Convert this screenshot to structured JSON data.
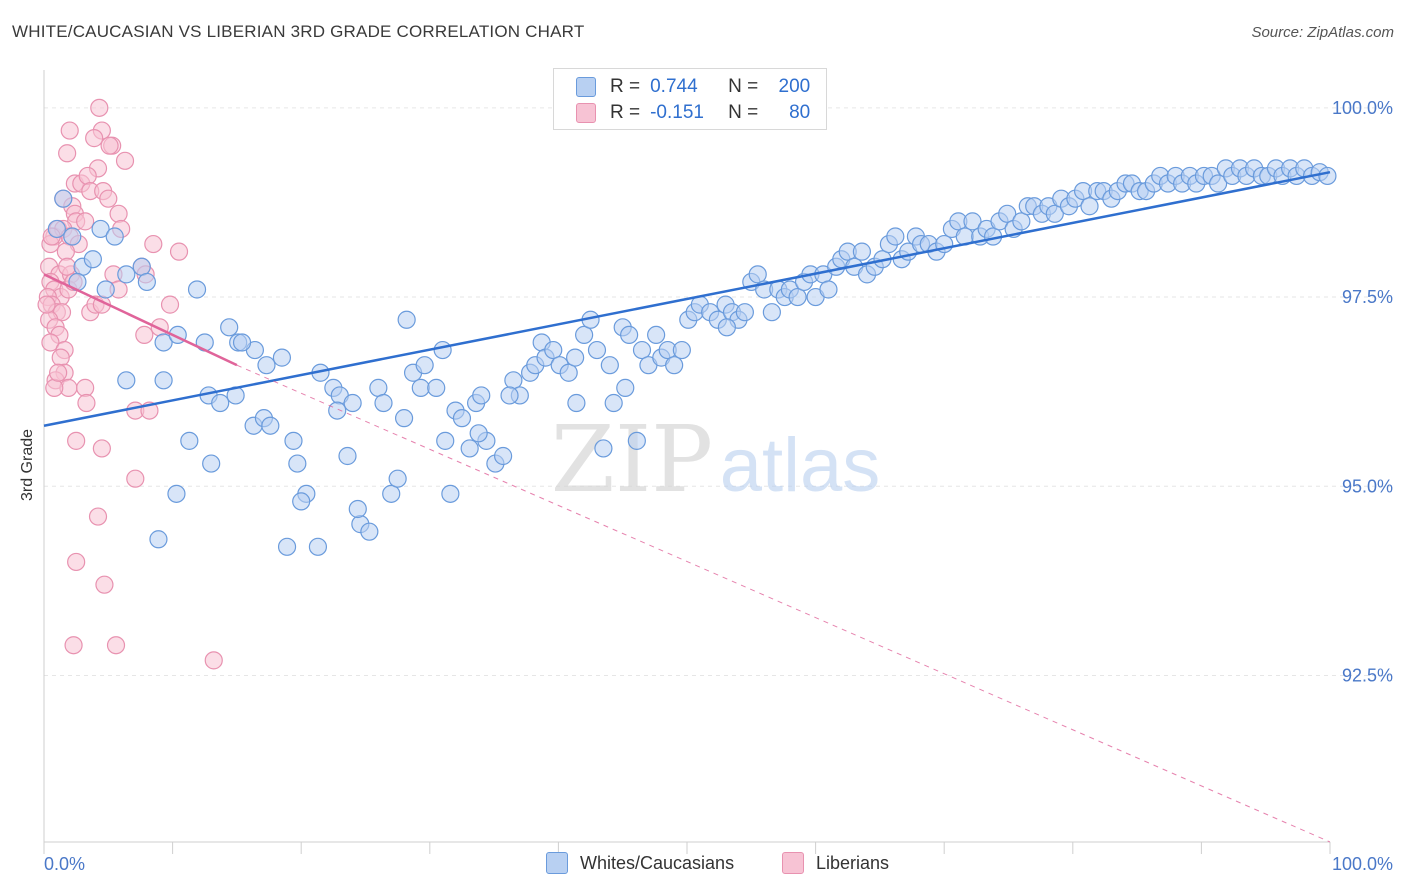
{
  "title": "WHITE/CAUCASIAN VS LIBERIAN 3RD GRADE CORRELATION CHART",
  "source": "Source: ZipAtlas.com",
  "watermark": {
    "zip": "ZIP",
    "atlas": "atlas"
  },
  "legend": {
    "rows": [
      {
        "r_label": "R =",
        "r_value": "0.744",
        "n_label": "N =",
        "n_value": "200"
      },
      {
        "r_label": "R =",
        "r_value": "-0.151",
        "n_label": "N =",
        "n_value": "80"
      }
    ]
  },
  "bottom_legend": {
    "series1": "Whites/Caucasians",
    "series2": "Liberians"
  },
  "colors": {
    "blue_fill": "#b8d0f2",
    "blue_stroke": "#6a9bdc",
    "blue_line": "#2f6fcf",
    "pink_fill": "#f7c3d4",
    "pink_stroke": "#e892b0",
    "pink_line": "#e0649a",
    "tick_label": "#4a78c8",
    "grid": "#e6e6e6"
  },
  "chart_data": {
    "type": "scatter",
    "title": "WHITE/CAUCASIAN VS LIBERIAN 3RD GRADE CORRELATION CHART",
    "xlabel": "",
    "ylabel": "3rd Grade",
    "xlim": [
      0,
      100
    ],
    "ylim": [
      90.3,
      100.5
    ],
    "x_tick_labels": [
      "0.0%",
      "100.0%"
    ],
    "y_ticks": [
      92.5,
      95.0,
      97.5,
      100.0
    ],
    "y_tick_labels": [
      "92.5%",
      "95.0%",
      "97.5%",
      "100.0%"
    ],
    "series": [
      {
        "name": "Whites/Caucasians",
        "R": 0.744,
        "N": 200,
        "trend": {
          "x": [
            0,
            100
          ],
          "y": [
            95.8,
            99.15
          ]
        },
        "points": [
          [
            1.0,
            98.4
          ],
          [
            1.5,
            98.8
          ],
          [
            2.2,
            98.3
          ],
          [
            3.0,
            97.9
          ],
          [
            3.8,
            98.0
          ],
          [
            4.4,
            98.4
          ],
          [
            5.5,
            98.3
          ],
          [
            2.6,
            97.7
          ],
          [
            4.8,
            97.6
          ],
          [
            6.4,
            97.8
          ],
          [
            7.6,
            97.9
          ],
          [
            8.0,
            97.7
          ],
          [
            11.9,
            97.6
          ],
          [
            9.3,
            96.9
          ],
          [
            10.4,
            97.0
          ],
          [
            12.5,
            96.9
          ],
          [
            14.4,
            97.1
          ],
          [
            15.1,
            96.9
          ],
          [
            16.4,
            96.8
          ],
          [
            17.3,
            96.6
          ],
          [
            18.5,
            96.7
          ],
          [
            6.4,
            96.4
          ],
          [
            9.3,
            96.4
          ],
          [
            12.8,
            96.2
          ],
          [
            13.7,
            96.1
          ],
          [
            14.9,
            96.2
          ],
          [
            16.3,
            95.8
          ],
          [
            17.1,
            95.9
          ],
          [
            17.6,
            95.8
          ],
          [
            11.3,
            95.6
          ],
          [
            13.0,
            95.3
          ],
          [
            10.3,
            94.9
          ],
          [
            8.9,
            94.3
          ],
          [
            19.4,
            95.6
          ],
          [
            19.7,
            95.3
          ],
          [
            20.4,
            94.9
          ],
          [
            20.0,
            94.8
          ],
          [
            21.5,
            96.5
          ],
          [
            22.5,
            96.3
          ],
          [
            23.0,
            96.2
          ],
          [
            23.6,
            95.4
          ],
          [
            24.0,
            96.1
          ],
          [
            24.6,
            94.5
          ],
          [
            24.4,
            94.7
          ],
          [
            25.3,
            94.4
          ],
          [
            26.0,
            96.3
          ],
          [
            26.4,
            96.1
          ],
          [
            27.0,
            94.9
          ],
          [
            27.5,
            95.1
          ],
          [
            28.0,
            95.9
          ],
          [
            28.7,
            96.5
          ],
          [
            29.3,
            96.3
          ],
          [
            29.6,
            96.6
          ],
          [
            30.5,
            96.3
          ],
          [
            31.0,
            96.8
          ],
          [
            31.2,
            95.6
          ],
          [
            31.6,
            94.9
          ],
          [
            32.0,
            96.0
          ],
          [
            32.5,
            95.9
          ],
          [
            33.1,
            95.5
          ],
          [
            33.6,
            96.1
          ],
          [
            34.0,
            96.2
          ],
          [
            34.4,
            95.6
          ],
          [
            35.1,
            95.3
          ],
          [
            35.7,
            95.4
          ],
          [
            36.5,
            96.4
          ],
          [
            37.0,
            96.2
          ],
          [
            37.8,
            96.5
          ],
          [
            38.2,
            96.6
          ],
          [
            38.7,
            96.9
          ],
          [
            39.0,
            96.7
          ],
          [
            39.6,
            96.8
          ],
          [
            40.1,
            96.6
          ],
          [
            40.8,
            96.5
          ],
          [
            41.3,
            96.7
          ],
          [
            42.0,
            97.0
          ],
          [
            42.5,
            97.2
          ],
          [
            43.0,
            96.8
          ],
          [
            43.5,
            95.5
          ],
          [
            44.0,
            96.6
          ],
          [
            44.3,
            96.1
          ],
          [
            45.0,
            97.1
          ],
          [
            45.5,
            97.0
          ],
          [
            46.1,
            95.6
          ],
          [
            46.5,
            96.8
          ],
          [
            47.0,
            96.6
          ],
          [
            47.6,
            97.0
          ],
          [
            48.0,
            96.7
          ],
          [
            48.5,
            96.8
          ],
          [
            49.0,
            96.6
          ],
          [
            49.6,
            96.8
          ],
          [
            50.1,
            97.2
          ],
          [
            50.6,
            97.3
          ],
          [
            51.0,
            97.4
          ],
          [
            51.8,
            97.3
          ],
          [
            52.4,
            97.2
          ],
          [
            53.0,
            97.4
          ],
          [
            53.5,
            97.3
          ],
          [
            54.0,
            97.2
          ],
          [
            54.5,
            97.3
          ],
          [
            55.0,
            97.7
          ],
          [
            55.5,
            97.8
          ],
          [
            56.0,
            97.6
          ],
          [
            56.6,
            97.3
          ],
          [
            57.1,
            97.6
          ],
          [
            57.6,
            97.5
          ],
          [
            58.0,
            97.6
          ],
          [
            58.6,
            97.5
          ],
          [
            59.1,
            97.7
          ],
          [
            59.6,
            97.8
          ],
          [
            60.0,
            97.5
          ],
          [
            60.6,
            97.8
          ],
          [
            61.0,
            97.6
          ],
          [
            61.6,
            97.9
          ],
          [
            62.0,
            98.0
          ],
          [
            62.5,
            98.1
          ],
          [
            63.0,
            97.9
          ],
          [
            63.6,
            98.1
          ],
          [
            64.0,
            97.8
          ],
          [
            64.6,
            97.9
          ],
          [
            65.2,
            98.0
          ],
          [
            65.7,
            98.2
          ],
          [
            66.2,
            98.3
          ],
          [
            66.7,
            98.0
          ],
          [
            67.2,
            98.1
          ],
          [
            67.8,
            98.3
          ],
          [
            68.2,
            98.2
          ],
          [
            68.8,
            98.2
          ],
          [
            69.4,
            98.1
          ],
          [
            70.0,
            98.2
          ],
          [
            70.6,
            98.4
          ],
          [
            71.1,
            98.5
          ],
          [
            71.6,
            98.3
          ],
          [
            72.2,
            98.5
          ],
          [
            72.8,
            98.3
          ],
          [
            73.3,
            98.4
          ],
          [
            73.8,
            98.3
          ],
          [
            74.3,
            98.5
          ],
          [
            74.9,
            98.6
          ],
          [
            75.4,
            98.4
          ],
          [
            76.0,
            98.5
          ],
          [
            76.5,
            98.7
          ],
          [
            77.0,
            98.7
          ],
          [
            77.6,
            98.6
          ],
          [
            78.1,
            98.7
          ],
          [
            78.6,
            98.6
          ],
          [
            79.1,
            98.8
          ],
          [
            79.7,
            98.7
          ],
          [
            80.2,
            98.8
          ],
          [
            80.8,
            98.9
          ],
          [
            81.3,
            98.7
          ],
          [
            81.9,
            98.9
          ],
          [
            82.4,
            98.9
          ],
          [
            83.0,
            98.8
          ],
          [
            83.5,
            98.9
          ],
          [
            84.1,
            99.0
          ],
          [
            84.6,
            99.0
          ],
          [
            85.2,
            98.9
          ],
          [
            85.7,
            98.9
          ],
          [
            86.3,
            99.0
          ],
          [
            86.8,
            99.1
          ],
          [
            87.4,
            99.0
          ],
          [
            88.0,
            99.1
          ],
          [
            88.5,
            99.0
          ],
          [
            89.1,
            99.1
          ],
          [
            89.6,
            99.0
          ],
          [
            90.2,
            99.1
          ],
          [
            90.8,
            99.1
          ],
          [
            91.3,
            99.0
          ],
          [
            91.9,
            99.2
          ],
          [
            92.4,
            99.1
          ],
          [
            93.0,
            99.2
          ],
          [
            93.5,
            99.1
          ],
          [
            94.1,
            99.2
          ],
          [
            94.7,
            99.1
          ],
          [
            95.2,
            99.1
          ],
          [
            95.8,
            99.2
          ],
          [
            96.3,
            99.1
          ],
          [
            96.9,
            99.2
          ],
          [
            97.4,
            99.1
          ],
          [
            98.0,
            99.2
          ],
          [
            98.6,
            99.1
          ],
          [
            99.2,
            99.15
          ],
          [
            99.8,
            99.1
          ],
          [
            28.2,
            97.2
          ],
          [
            41.4,
            96.1
          ],
          [
            21.3,
            94.2
          ],
          [
            18.9,
            94.2
          ],
          [
            15.4,
            96.9
          ],
          [
            36.2,
            96.2
          ],
          [
            53.1,
            97.1
          ],
          [
            33.8,
            95.7
          ],
          [
            22.8,
            96.0
          ],
          [
            45.2,
            96.3
          ]
        ]
      },
      {
        "name": "Liberians",
        "R": -0.151,
        "N": 80,
        "trend": {
          "x": [
            0,
            15
          ],
          "y": [
            97.8,
            96.6
          ],
          "dashed_extension": {
            "x": [
              15,
              100
            ],
            "y": [
              96.6,
              90.3
            ]
          }
        },
        "points": [
          [
            4.3,
            100.0
          ],
          [
            4.5,
            99.7
          ],
          [
            2.0,
            99.7
          ],
          [
            3.9,
            99.6
          ],
          [
            5.3,
            99.5
          ],
          [
            5.1,
            99.5
          ],
          [
            1.8,
            99.4
          ],
          [
            6.3,
            99.3
          ],
          [
            4.2,
            99.2
          ],
          [
            2.4,
            99.0
          ],
          [
            2.9,
            99.0
          ],
          [
            3.4,
            99.1
          ],
          [
            3.6,
            98.9
          ],
          [
            4.6,
            98.9
          ],
          [
            1.5,
            98.8
          ],
          [
            2.2,
            98.7
          ],
          [
            2.4,
            98.6
          ],
          [
            2.5,
            98.5
          ],
          [
            3.2,
            98.5
          ],
          [
            5.8,
            98.6
          ],
          [
            0.8,
            98.3
          ],
          [
            1.1,
            98.4
          ],
          [
            1.5,
            98.4
          ],
          [
            2.0,
            98.3
          ],
          [
            2.7,
            98.2
          ],
          [
            0.5,
            98.2
          ],
          [
            1.7,
            98.1
          ],
          [
            8.5,
            98.2
          ],
          [
            10.5,
            98.1
          ],
          [
            0.4,
            97.9
          ],
          [
            1.2,
            97.8
          ],
          [
            2.1,
            97.8
          ],
          [
            5.4,
            97.8
          ],
          [
            7.6,
            97.9
          ],
          [
            7.9,
            97.8
          ],
          [
            0.5,
            97.7
          ],
          [
            0.8,
            97.6
          ],
          [
            1.3,
            97.5
          ],
          [
            1.9,
            97.6
          ],
          [
            5.8,
            97.6
          ],
          [
            0.3,
            97.5
          ],
          [
            0.6,
            97.4
          ],
          [
            1.0,
            97.3
          ],
          [
            1.4,
            97.3
          ],
          [
            3.6,
            97.3
          ],
          [
            4.0,
            97.4
          ],
          [
            4.5,
            97.4
          ],
          [
            0.4,
            97.2
          ],
          [
            0.9,
            97.1
          ],
          [
            1.2,
            97.0
          ],
          [
            9.8,
            97.4
          ],
          [
            0.5,
            96.9
          ],
          [
            1.6,
            96.8
          ],
          [
            1.3,
            96.7
          ],
          [
            7.8,
            97.0
          ],
          [
            1.6,
            96.5
          ],
          [
            0.9,
            96.4
          ],
          [
            1.9,
            96.3
          ],
          [
            3.2,
            96.3
          ],
          [
            0.8,
            96.3
          ],
          [
            7.1,
            96.0
          ],
          [
            8.2,
            96.0
          ],
          [
            2.5,
            95.6
          ],
          [
            4.5,
            95.5
          ],
          [
            7.1,
            95.1
          ],
          [
            4.2,
            94.6
          ],
          [
            2.5,
            94.0
          ],
          [
            4.7,
            93.7
          ],
          [
            2.3,
            92.9
          ],
          [
            5.6,
            92.9
          ],
          [
            13.2,
            92.7
          ],
          [
            9.0,
            97.1
          ],
          [
            3.3,
            96.1
          ],
          [
            1.8,
            97.9
          ],
          [
            0.6,
            98.3
          ],
          [
            0.2,
            97.4
          ],
          [
            1.1,
            96.5
          ],
          [
            2.3,
            97.7
          ],
          [
            5.0,
            98.8
          ],
          [
            6.0,
            98.4
          ]
        ]
      }
    ]
  }
}
